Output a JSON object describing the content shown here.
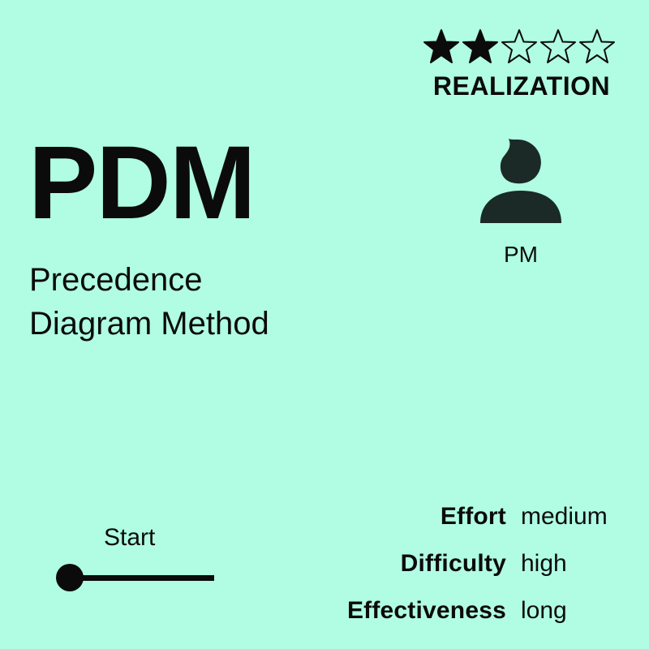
{
  "rating": {
    "value": 2,
    "max": 5,
    "category": "REALIZATION"
  },
  "title": {
    "abbreviation": "PDM",
    "line1": "Precedence",
    "line2": "Diagram Method"
  },
  "role": {
    "icon": "person-icon",
    "label": "PM"
  },
  "phase": {
    "label": "Start",
    "progress": 0
  },
  "metrics": [
    {
      "key": "Effort",
      "value": "medium"
    },
    {
      "key": "Difficulty",
      "value": "high"
    },
    {
      "key": "Effectiveness",
      "value": "long"
    }
  ],
  "colors": {
    "background": "#b0fde3",
    "foreground": "#0b0b0b",
    "icon": "#1b2a26"
  }
}
